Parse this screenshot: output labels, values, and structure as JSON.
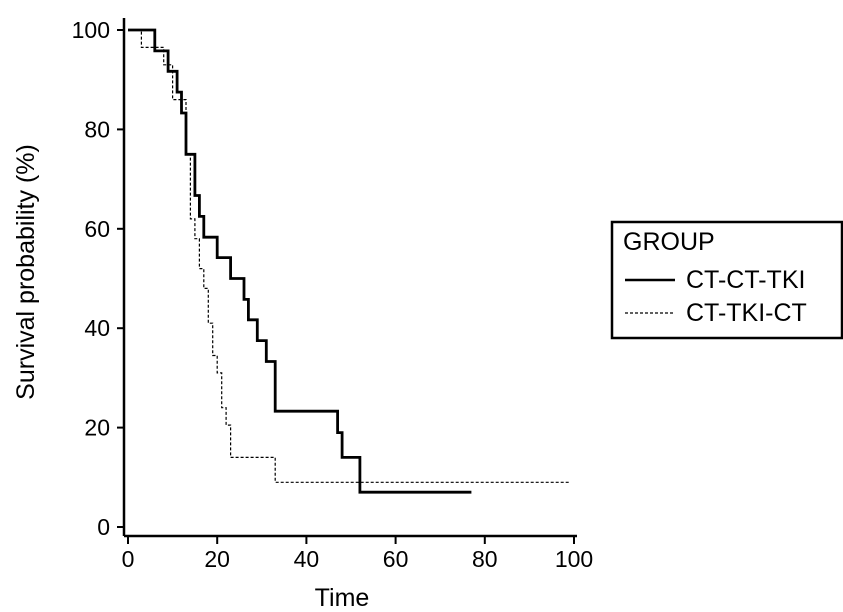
{
  "chart_data": {
    "type": "line",
    "subtype": "kaplan-meier-step",
    "xlabel": "Time",
    "ylabel": "Survival probability (%)",
    "xlim": [
      0,
      100
    ],
    "ylim": [
      0,
      100
    ],
    "xticks": [
      "0",
      "20",
      "40",
      "60",
      "80",
      "100"
    ],
    "yticks": [
      "0",
      "20",
      "40",
      "60",
      "80",
      "100"
    ],
    "grid": false,
    "legend": {
      "title": "GROUP",
      "placement": "right"
    },
    "series": [
      {
        "name": "CT-CT-TKI",
        "line_style": "solid-thick",
        "color": "#000000",
        "x": [
          0,
          6,
          6,
          9,
          9,
          11,
          11,
          12,
          12,
          13,
          13,
          15,
          15,
          16,
          16,
          17,
          17,
          20,
          20,
          23,
          23,
          26,
          26,
          27,
          27,
          29,
          29,
          31,
          31,
          33,
          33,
          47,
          47,
          48,
          48,
          52,
          52,
          77
        ],
        "y": [
          100,
          100,
          95.8,
          95.8,
          91.7,
          91.7,
          87.5,
          87.5,
          83.3,
          83.3,
          75,
          75,
          66.7,
          66.7,
          62.5,
          62.5,
          58.3,
          58.3,
          54.2,
          54.2,
          50,
          50,
          45.8,
          45.8,
          41.7,
          41.7,
          37.5,
          37.5,
          33.3,
          33.3,
          23.3,
          23.3,
          19,
          19,
          14,
          14,
          7,
          7
        ]
      },
      {
        "name": "CT-TKI-CT",
        "line_style": "dashed-thin",
        "color": "#000000",
        "x": [
          0,
          3,
          3,
          8,
          8,
          10,
          10,
          13,
          13,
          14,
          14,
          15,
          15,
          16,
          16,
          17,
          17,
          18,
          18,
          19,
          19,
          20,
          20,
          21,
          21,
          22,
          22,
          23,
          23,
          33,
          33,
          46,
          46,
          99
        ],
        "y": [
          100,
          100,
          96.5,
          96.5,
          93,
          93,
          86,
          86,
          75,
          75,
          62,
          62,
          58,
          58,
          52,
          52,
          48,
          48,
          41,
          41,
          34.5,
          34.5,
          31,
          31,
          24,
          24,
          20.5,
          20.5,
          14,
          14,
          9,
          9,
          9,
          9
        ]
      }
    ]
  }
}
